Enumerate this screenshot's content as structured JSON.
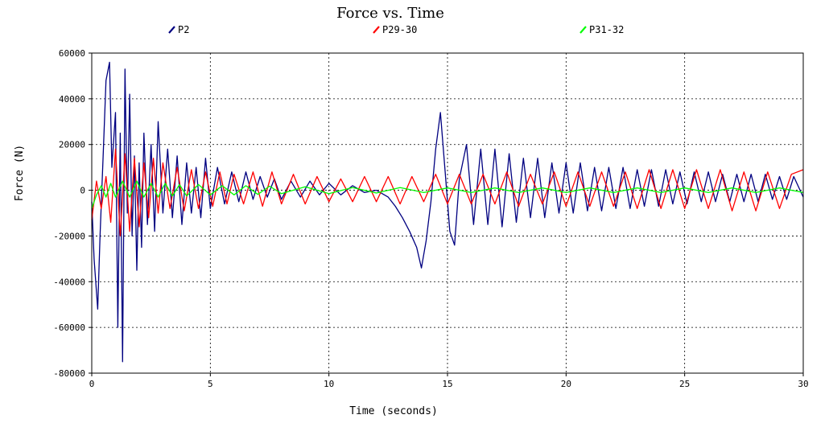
{
  "chart_data": {
    "type": "line",
    "title": "Force vs. Time",
    "xlabel": "Time (seconds)",
    "ylabel": "Force (N)",
    "xlim": [
      0,
      30
    ],
    "ylim": [
      -80000,
      60000
    ],
    "xticks": [
      0,
      5,
      10,
      15,
      20,
      25,
      30
    ],
    "yticks": [
      -80000,
      -60000,
      -40000,
      -20000,
      0,
      20000,
      40000,
      60000
    ],
    "grid": true,
    "legend_position": "top",
    "series": [
      {
        "name": "P2",
        "color": "#000080",
        "x": [
          0,
          0.1,
          0.25,
          0.35,
          0.5,
          0.6,
          0.75,
          0.85,
          1.0,
          1.1,
          1.2,
          1.3,
          1.4,
          1.5,
          1.6,
          1.7,
          1.8,
          1.9,
          2.0,
          2.1,
          2.2,
          2.35,
          2.5,
          2.65,
          2.8,
          3.0,
          3.2,
          3.4,
          3.6,
          3.8,
          4.0,
          4.2,
          4.4,
          4.6,
          4.8,
          5.0,
          5.3,
          5.6,
          5.9,
          6.2,
          6.5,
          6.8,
          7.1,
          7.4,
          7.7,
          8.0,
          8.4,
          8.8,
          9.2,
          9.6,
          10.0,
          10.5,
          11.0,
          11.5,
          12.0,
          12.5,
          12.8,
          13.1,
          13.4,
          13.7,
          13.9,
          14.1,
          14.3,
          14.5,
          14.7,
          14.9,
          15.1,
          15.3,
          15.5,
          15.8,
          16.1,
          16.4,
          16.7,
          17.0,
          17.3,
          17.6,
          17.9,
          18.2,
          18.5,
          18.8,
          19.1,
          19.4,
          19.7,
          20.0,
          20.3,
          20.6,
          20.9,
          21.2,
          21.5,
          21.8,
          22.1,
          22.4,
          22.7,
          23.0,
          23.3,
          23.6,
          23.9,
          24.2,
          24.5,
          24.8,
          25.1,
          25.4,
          25.7,
          26.0,
          26.3,
          26.6,
          26.9,
          27.2,
          27.5,
          27.8,
          28.1,
          28.4,
          28.7,
          29.0,
          29.3,
          29.6,
          30.0
        ],
        "y": [
          -5000,
          -30000,
          -52000,
          -20000,
          20000,
          48000,
          56000,
          10000,
          34000,
          -60000,
          25000,
          -75000,
          53000,
          -10000,
          42000,
          -20000,
          15000,
          -35000,
          12000,
          -25000,
          25000,
          -15000,
          20000,
          -18000,
          30000,
          -10000,
          18000,
          -12000,
          15000,
          -15000,
          12000,
          -10000,
          10000,
          -12000,
          14000,
          -8000,
          10000,
          -6000,
          8000,
          -5000,
          8000,
          -4000,
          6000,
          -3000,
          5000,
          -4000,
          4000,
          -3000,
          4000,
          -2000,
          3000,
          -2000,
          2000,
          -1000,
          0,
          -3000,
          -7000,
          -12000,
          -18000,
          -25000,
          -34000,
          -22000,
          -5000,
          18000,
          34000,
          8000,
          -18000,
          -24000,
          5000,
          20000,
          -15000,
          18000,
          -15000,
          18000,
          -16000,
          16000,
          -14000,
          14000,
          -12000,
          14000,
          -12000,
          12000,
          -10000,
          12000,
          -10000,
          12000,
          -9000,
          10000,
          -9000,
          10000,
          -8000,
          10000,
          -8000,
          9000,
          -7000,
          9000,
          -7000,
          9000,
          -6000,
          8000,
          -6000,
          8000,
          -5000,
          8000,
          -5000,
          7000,
          -5000,
          7000,
          -5000,
          7000,
          -5000,
          7000,
          -4000,
          6000,
          -4000,
          6000,
          -3000
        ]
      },
      {
        "name": "P29-30",
        "color": "#ff0000",
        "x": [
          0,
          0.2,
          0.4,
          0.6,
          0.8,
          1.0,
          1.2,
          1.4,
          1.6,
          1.8,
          2.0,
          2.2,
          2.4,
          2.6,
          2.8,
          3.0,
          3.3,
          3.6,
          3.9,
          4.2,
          4.5,
          4.8,
          5.1,
          5.4,
          5.7,
          6.0,
          6.4,
          6.8,
          7.2,
          7.6,
          8.0,
          8.5,
          9.0,
          9.5,
          10.0,
          10.5,
          11.0,
          11.5,
          12.0,
          12.5,
          13.0,
          13.5,
          14.0,
          14.5,
          15.0,
          15.5,
          16.0,
          16.5,
          17.0,
          17.5,
          18.0,
          18.5,
          19.0,
          19.5,
          20.0,
          20.5,
          21.0,
          21.5,
          22.0,
          22.5,
          23.0,
          23.5,
          24.0,
          24.5,
          25.0,
          25.5,
          26.0,
          26.5,
          27.0,
          27.5,
          28.0,
          28.5,
          29.0,
          29.5,
          30.0
        ],
        "y": [
          -13000,
          4000,
          -8000,
          6000,
          -14000,
          18000,
          -20000,
          16000,
          -18000,
          14000,
          -16000,
          12000,
          -12000,
          14000,
          -10000,
          12000,
          -8000,
          10000,
          -9000,
          9000,
          -8000,
          8000,
          -7000,
          8000,
          -6000,
          7000,
          -6000,
          8000,
          -7000,
          8000,
          -6000,
          7000,
          -6000,
          6000,
          -5000,
          5000,
          -5000,
          6000,
          -5000,
          6000,
          -6000,
          6000,
          -5000,
          7000,
          -6000,
          7000,
          -6000,
          7000,
          -6000,
          8000,
          -7000,
          7000,
          -6000,
          8000,
          -7000,
          8000,
          -7000,
          8000,
          -7000,
          8000,
          -8000,
          9000,
          -8000,
          9000,
          -8000,
          9000,
          -8000,
          9000,
          -9000,
          8000,
          -9000,
          8000,
          -8000,
          7000,
          9000
        ]
      },
      {
        "name": "P31-32",
        "color": "#00ff00",
        "x": [
          0,
          0.2,
          0.4,
          0.6,
          0.8,
          1.0,
          1.3,
          1.6,
          1.9,
          2.2,
          2.5,
          2.8,
          3.1,
          3.4,
          3.7,
          4.0,
          4.5,
          5.0,
          5.5,
          6.0,
          6.5,
          7.0,
          7.5,
          8.0,
          9.0,
          10.0,
          11.0,
          12.0,
          13.0,
          14.0,
          15.0,
          16.0,
          17.0,
          18.0,
          19.0,
          20.0,
          21.0,
          22.0,
          23.0,
          24.0,
          25.0,
          26.0,
          27.0,
          28.0,
          29.0,
          30.0
        ],
        "y": [
          -8000,
          -2000,
          2000,
          -3000,
          3000,
          -3000,
          4000,
          -3000,
          4000,
          -3000,
          3000,
          -3000,
          3000,
          -2500,
          2500,
          -2500,
          2500,
          -2000,
          2000,
          -2000,
          2000,
          -1800,
          1800,
          -1500,
          1500,
          -1500,
          1200,
          -1200,
          1200,
          -1000,
          1000,
          -1000,
          1000,
          -1000,
          1000,
          -1000,
          1000,
          -1000,
          1000,
          -1000,
          1000,
          -1000,
          1000,
          -1000,
          1000,
          -1000
        ]
      }
    ]
  }
}
